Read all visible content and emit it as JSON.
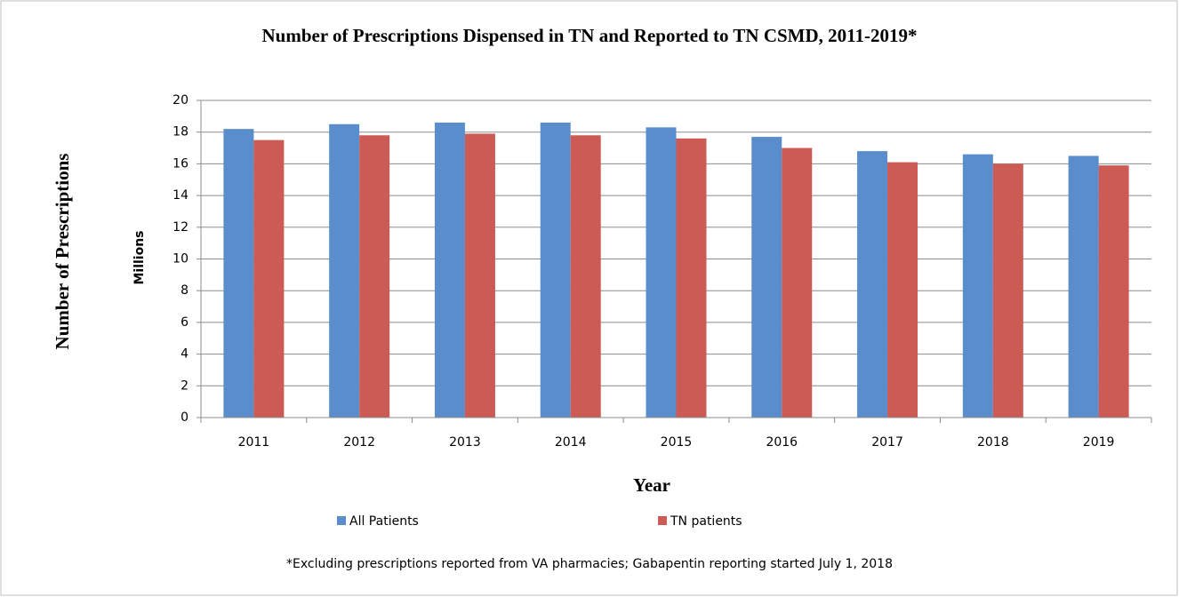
{
  "chart_data": {
    "type": "bar",
    "title": "Number of Prescriptions  Dispensed in TN and Reported to TN CSMD, 2011-2019*",
    "y_axis_label": "Number of Prescriptions",
    "y_units_label": "Millions",
    "x_axis_label": "Year",
    "footnote": "*Excluding prescriptions reported from VA pharmacies; Gabapentin reporting started July 1, 2018",
    "categories": [
      "2011",
      "2012",
      "2013",
      "2014",
      "2015",
      "2016",
      "2017",
      "2018",
      "2019"
    ],
    "series": [
      {
        "name": "All Patients",
        "color": "#5a8dcb",
        "values": [
          18.2,
          18.5,
          18.6,
          18.6,
          18.3,
          17.7,
          16.8,
          16.6,
          16.5
        ]
      },
      {
        "name": "TN patients",
        "color": "#cc5b55",
        "values": [
          17.5,
          17.8,
          17.9,
          17.8,
          17.6,
          17.0,
          16.1,
          16.0,
          15.9
        ]
      }
    ],
    "ylim": [
      0,
      20
    ],
    "yticks": [
      0,
      2,
      4,
      6,
      8,
      10,
      12,
      14,
      16,
      18,
      20
    ],
    "grid": true,
    "legend": "bottom"
  }
}
